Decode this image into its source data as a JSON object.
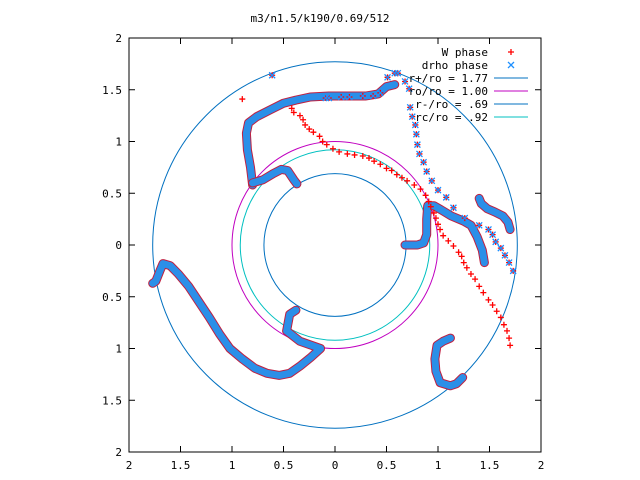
{
  "chart_data": {
    "type": "scatter",
    "title": "m3/n1.5/k190/0.69/512",
    "xlabel": "",
    "ylabel": "",
    "xlim": [
      -2,
      2
    ],
    "ylim": [
      -2,
      2
    ],
    "x_tick_values": [
      -2,
      -1.5,
      -1,
      -0.5,
      0,
      0.5,
      1,
      1.5,
      2
    ],
    "x_tick_labels": [
      "2",
      "1.5",
      "1",
      "0.5",
      "0",
      "0.5",
      "1",
      "1.5",
      "2"
    ],
    "y_tick_values": [
      2,
      1.5,
      1,
      0.5,
      0,
      -0.5,
      -1,
      -1.5,
      -2
    ],
    "y_tick_labels": [
      "2",
      "1.5",
      "1",
      "0.5",
      "0",
      "0.5",
      "1",
      "1.5",
      "2"
    ],
    "grid": false,
    "legend_position": "top-right",
    "series": [
      {
        "name": "W phase",
        "kind": "points",
        "marker": "+",
        "color": "#ff0000",
        "x": [
          -0.61,
          -0.09,
          -0.06,
          0.06,
          0.14,
          0.27,
          0.37,
          0.44,
          0.51,
          0.58,
          0.61,
          0.68,
          0.72,
          0.73,
          0.75,
          0.78,
          0.79,
          0.8,
          0.82,
          0.86,
          0.89,
          0.94,
          1.0,
          1.08,
          1.15,
          1.26,
          1.4,
          1.49,
          1.53,
          1.56,
          1.61,
          1.65,
          1.69,
          1.73,
          -0.9,
          -0.42,
          -0.4,
          -0.34,
          -0.31,
          -0.29,
          -0.25,
          -0.21,
          -0.15,
          -0.12,
          -0.08,
          -0.02,
          0.04,
          0.12,
          0.19,
          0.27,
          0.33,
          0.38,
          0.44,
          0.5,
          0.55,
          0.6,
          0.65,
          0.7,
          0.77,
          0.83,
          0.88,
          0.91,
          0.93,
          0.96,
          0.98,
          1.0,
          1.02,
          1.05,
          1.1,
          1.15,
          1.2,
          1.23,
          1.25,
          1.28,
          1.32,
          1.36,
          1.4,
          1.44,
          1.49,
          1.53,
          1.57,
          1.61,
          1.64,
          1.67,
          1.69,
          1.7
        ],
        "y": [
          1.64,
          1.42,
          1.42,
          1.43,
          1.43,
          1.44,
          1.44,
          1.47,
          1.62,
          1.66,
          1.66,
          1.58,
          1.51,
          1.33,
          1.24,
          1.16,
          1.07,
          0.97,
          0.88,
          0.8,
          0.71,
          0.62,
          0.53,
          0.46,
          0.36,
          0.26,
          0.19,
          0.15,
          0.1,
          0.03,
          -0.03,
          -0.1,
          -0.17,
          -0.25,
          1.41,
          1.32,
          1.28,
          1.25,
          1.21,
          1.16,
          1.12,
          1.09,
          1.05,
          1.0,
          0.97,
          0.93,
          0.9,
          0.88,
          0.87,
          0.86,
          0.84,
          0.81,
          0.78,
          0.74,
          0.72,
          0.68,
          0.65,
          0.62,
          0.58,
          0.54,
          0.48,
          0.42,
          0.37,
          0.31,
          0.26,
          0.2,
          0.15,
          0.09,
          0.04,
          -0.01,
          -0.07,
          -0.11,
          -0.17,
          -0.22,
          -0.28,
          -0.33,
          -0.4,
          -0.46,
          -0.53,
          -0.58,
          -0.64,
          -0.7,
          -0.77,
          -0.83,
          -0.9,
          -0.97
        ]
      },
      {
        "name": "drho phase",
        "kind": "points",
        "marker": "x",
        "color": "#1e90ff",
        "x": [
          -0.61,
          -0.09,
          -0.06,
          0.06,
          0.14,
          0.27,
          0.37,
          0.44,
          0.51,
          0.58,
          0.61,
          0.68,
          0.72,
          0.73,
          0.75,
          0.78,
          0.79,
          0.8,
          0.82,
          0.86,
          0.89,
          0.94,
          1.0,
          1.08,
          1.15,
          1.26,
          1.4,
          1.49,
          1.53,
          1.56,
          1.61,
          1.65,
          1.69,
          1.73
        ],
        "y": [
          1.64,
          1.42,
          1.42,
          1.43,
          1.43,
          1.44,
          1.44,
          1.47,
          1.62,
          1.66,
          1.66,
          1.58,
          1.51,
          1.33,
          1.24,
          1.16,
          1.07,
          0.97,
          0.88,
          0.8,
          0.71,
          0.62,
          0.53,
          0.46,
          0.36,
          0.26,
          0.19,
          0.15,
          0.1,
          0.03,
          -0.03,
          -0.1,
          -0.17,
          -0.25
        ]
      },
      {
        "name": "r+/ro = 1.77",
        "kind": "circle",
        "radius": 1.77,
        "color": "#0070c0"
      },
      {
        "name": "ro/ro = 1.00",
        "kind": "circle",
        "radius": 1.0,
        "color": "#c000c0"
      },
      {
        "name": "r-/ro = .69",
        "kind": "circle",
        "radius": 0.69,
        "color": "#0070c0"
      },
      {
        "name": "rc/ro = .92",
        "kind": "circle",
        "radius": 0.92,
        "color": "#00c0c0"
      }
    ]
  }
}
